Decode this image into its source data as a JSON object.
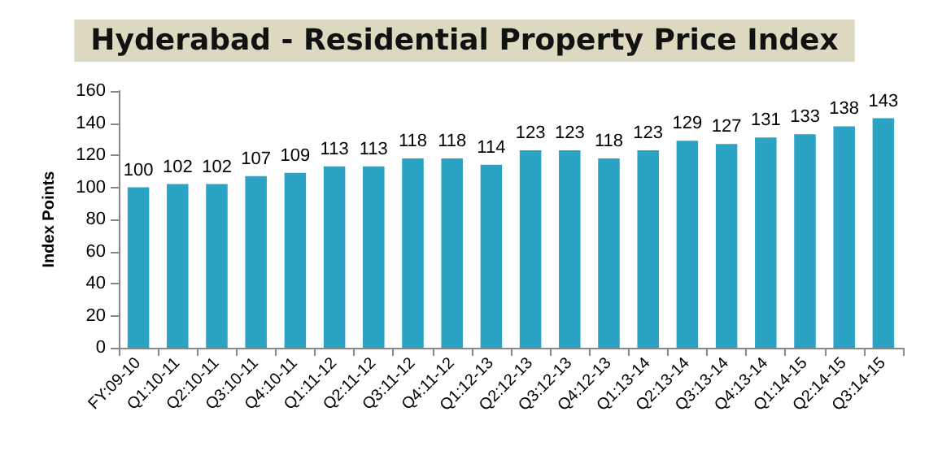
{
  "chart_data": {
    "type": "bar",
    "title": "Hyderabad - Residential Property Price Index",
    "ylabel": "Index Points",
    "categories": [
      "FY:09-10",
      "Q1:10-11",
      "Q2:10-11",
      "Q3:10-11",
      "Q4:10-11",
      "Q1:11-12",
      "Q2:11-12",
      "Q3:11-12",
      "Q4:11-12",
      "Q1:12-13",
      "Q2:12-13",
      "Q3:12-13",
      "Q4:12-13",
      "Q1:13-14",
      "Q2:13-14",
      "Q3:13-14",
      "Q4:13-14",
      "Q1:14-15",
      "Q2:14-15",
      "Q3:14-15"
    ],
    "values": [
      100,
      102,
      102,
      107,
      109,
      113,
      113,
      118,
      118,
      114,
      123,
      123,
      118,
      123,
      129,
      127,
      131,
      133,
      138,
      143
    ],
    "color": "#2aa3c4",
    "ylim": [
      0,
      160
    ],
    "yticks": [
      0,
      20,
      40,
      60,
      80,
      100,
      120,
      140,
      160
    ],
    "grid": false,
    "data_labels": true
  }
}
